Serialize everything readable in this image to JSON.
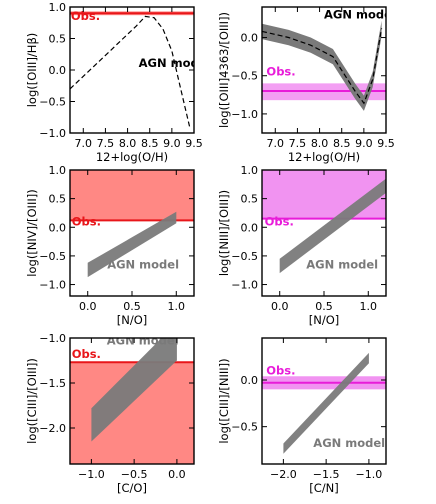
{
  "colors": {
    "red_line": "#e8161a",
    "red_fill": "#ff7b77",
    "magenta_line": "#e81cd9",
    "magenta_fill": "#f087f0",
    "model_fill": "#7a7a7a"
  },
  "chart_data": [
    {
      "type": "line",
      "xlabel": "12+log(O/H)",
      "ylabel": "log([OIII]/Hβ)",
      "xlim": [
        6.7,
        9.5
      ],
      "ylim": [
        -1.0,
        1.0
      ],
      "xticks": [
        "7.0",
        "7.5",
        "8.0",
        "8.5",
        "9.0",
        "9.5"
      ],
      "yticks": [
        "1.0",
        "0.5",
        "0.0",
        "-0.5",
        "-1.0"
      ],
      "obs": {
        "label": "Obs.",
        "value": 0.9,
        "band": [
          0.87,
          0.93
        ],
        "color": "red",
        "label_pos": [
          6.72,
          0.79
        ]
      },
      "model": {
        "label": "AGN model",
        "label_pos": [
          8.25,
          0.05
        ],
        "x": [
          6.7,
          7.0,
          7.3,
          7.6,
          7.9,
          8.2,
          8.4,
          8.6,
          8.8,
          9.0,
          9.2,
          9.4
        ],
        "y": [
          -0.3,
          -0.1,
          0.1,
          0.3,
          0.5,
          0.7,
          0.85,
          0.83,
          0.65,
          0.3,
          -0.3,
          -0.9
        ],
        "style": "dashed"
      }
    },
    {
      "type": "line",
      "xlabel": "12+log(O/H)",
      "ylabel": "log([OIII]4363/[OIII])",
      "xlim": [
        6.7,
        9.5
      ],
      "ylim": [
        -1.25,
        0.4
      ],
      "xticks": [
        "7.0",
        "7.5",
        "8.0",
        "8.5",
        "9.0",
        "9.5"
      ],
      "yticks": [
        "0.0",
        "-0.5",
        "-1.0"
      ],
      "obs": {
        "label": "Obs.",
        "value": -0.7,
        "band": [
          -0.82,
          -0.6
        ],
        "color": "magenta",
        "label_pos": [
          6.8,
          -0.5
        ]
      },
      "model": {
        "label": "AGN model",
        "label_pos": [
          8.1,
          0.25
        ],
        "x": [
          6.7,
          7.3,
          7.8,
          8.3,
          8.8,
          9.0,
          9.2,
          9.4
        ],
        "y": [
          0.08,
          0.0,
          -0.1,
          -0.25,
          -0.7,
          -0.86,
          -0.55,
          0.12
        ],
        "band_half_width": 0.1,
        "style": "dashed"
      }
    },
    {
      "type": "area",
      "xlabel": "[N/O]",
      "ylabel": "log([NIV]/[OIII])",
      "xlim": [
        -0.2,
        1.2
      ],
      "ylim": [
        -1.2,
        1.0
      ],
      "xticks": [
        "0.0",
        "0.5",
        "1.0"
      ],
      "yticks": [
        "1.0",
        "0.5",
        "0.0",
        "-0.5",
        "-1.0"
      ],
      "obs": {
        "label": "Obs.",
        "value": 0.12,
        "band_low": 0.12,
        "band_high": 1.0,
        "color": "red",
        "label_pos": [
          -0.18,
          0.03
        ]
      },
      "model": {
        "label": "AGN model",
        "label_pos": [
          0.22,
          -0.72
        ],
        "x": [
          0.0,
          1.0
        ],
        "lower": [
          -0.87,
          0.07
        ],
        "upper": [
          -0.62,
          0.27
        ]
      }
    },
    {
      "type": "area",
      "xlabel": "[N/O]",
      "ylabel": "log([NIII]/[OIII])",
      "xlim": [
        -0.2,
        1.2
      ],
      "ylim": [
        -1.2,
        1.0
      ],
      "xticks": [
        "0.0",
        "0.5",
        "1.0"
      ],
      "yticks": [
        "1.0",
        "0.5",
        "0.0",
        "-0.5",
        "-1.0"
      ],
      "obs": {
        "label": "Obs.",
        "value": 0.15,
        "band_low": 0.15,
        "band_high": 1.0,
        "color": "magenta",
        "label_pos": [
          -0.17,
          0.03
        ]
      },
      "model": {
        "label": "AGN model",
        "label_pos": [
          0.3,
          -0.72
        ],
        "x": [
          0.0,
          1.2
        ],
        "lower": [
          -0.8,
          0.6
        ],
        "upper": [
          -0.55,
          0.85
        ]
      }
    },
    {
      "type": "area",
      "xlabel": "[C/O]",
      "ylabel": "log([CIII]/[OIII])",
      "xlim": [
        -1.25,
        0.2
      ],
      "ylim": [
        -2.4,
        -1.0
      ],
      "xticks": [
        "-1.0",
        "-0.5",
        "0.0"
      ],
      "yticks": [
        "-1.0",
        "-1.5",
        "-2.0"
      ],
      "obs": {
        "label": "Obs.",
        "value": -1.27,
        "band_low": -2.4,
        "band_high": -1.27,
        "color": "red",
        "label_pos": [
          -1.23,
          -1.22
        ]
      },
      "model": {
        "label": "AGN model",
        "label_pos": [
          -0.82,
          -1.07
        ],
        "x": [
          -1.0,
          0.0
        ],
        "lower": [
          -2.15,
          -1.25
        ],
        "upper": [
          -1.78,
          -0.83
        ]
      }
    },
    {
      "type": "area",
      "xlabel": "[C/N]",
      "ylabel": "log([CIII]/[NIII])",
      "xlim": [
        -2.25,
        -0.8
      ],
      "ylim": [
        -0.9,
        0.45
      ],
      "xticks": [
        "-2.0",
        "-1.5",
        "-1.0"
      ],
      "yticks": [
        "0.0",
        "-0.5"
      ],
      "obs": {
        "label": "Obs.",
        "value": -0.03,
        "band_low": -0.1,
        "band_high": 0.04,
        "color": "magenta",
        "label_pos": [
          -2.2,
          0.06
        ]
      },
      "model": {
        "label": "AGN model",
        "label_pos": [
          -1.65,
          -0.72
        ],
        "x": [
          -2.0,
          -1.0
        ],
        "lower": [
          -0.79,
          0.18
        ],
        "upper": [
          -0.68,
          0.29
        ]
      }
    }
  ]
}
